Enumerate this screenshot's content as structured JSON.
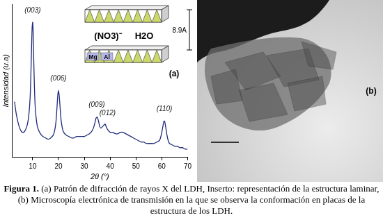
{
  "chart_data": {
    "type": "line",
    "x_label": "2θ (°)",
    "y_label": "Intensidad (u.a)",
    "panel_label": "(a)",
    "color": "#1f2a7a",
    "grid": false,
    "tick_labels": "x",
    "xlim": [
      2,
      70
    ],
    "xticks": [
      10,
      20,
      30,
      40,
      50,
      60,
      70
    ],
    "ylim": [
      0,
      110
    ],
    "x": [
      3,
      3.5,
      4,
      4.5,
      5,
      5.5,
      6,
      6.5,
      7,
      7.5,
      8,
      8.5,
      9,
      9.3,
      9.6,
      9.8,
      10,
      10.2,
      10.4,
      10.7,
      11,
      11.5,
      12,
      13,
      14,
      15,
      16,
      17,
      18,
      18.5,
      19,
      19.4,
      19.7,
      20,
      20.3,
      20.7,
      21,
      21.5,
      22,
      23,
      24,
      25,
      26,
      27,
      28,
      29,
      30,
      31,
      32,
      33,
      33.5,
      34,
      34.5,
      35,
      35.5,
      36,
      36.5,
      37,
      37.5,
      38,
      38.5,
      39,
      40,
      41,
      42,
      43,
      44,
      45,
      46,
      47,
      48,
      49,
      50,
      51,
      52,
      53,
      54,
      55,
      56,
      57,
      58,
      59,
      59.5,
      60,
      60.5,
      60.8,
      61.1,
      61.5,
      62,
      62.5,
      63,
      64,
      65,
      66,
      67,
      68,
      69,
      70
    ],
    "values": [
      40,
      33,
      28,
      24,
      21,
      19,
      18,
      18,
      19,
      21,
      24,
      30,
      42,
      58,
      80,
      93,
      97,
      90,
      72,
      50,
      36,
      26,
      21,
      17,
      15,
      14,
      13,
      14,
      16,
      19,
      25,
      35,
      44,
      48,
      44,
      34,
      27,
      21,
      18,
      16,
      15,
      14,
      14,
      15,
      15,
      15,
      15,
      16,
      17,
      19,
      21,
      24,
      28,
      29,
      26,
      22,
      21,
      22,
      23,
      24,
      22,
      20,
      18,
      18,
      17,
      17,
      18,
      18,
      17,
      16,
      15,
      14,
      13,
      12,
      11,
      11,
      10,
      10,
      10,
      10,
      11,
      12,
      14,
      18,
      23,
      26,
      26,
      22,
      16,
      12,
      10,
      9,
      8,
      8,
      7,
      7,
      6,
      6
    ],
    "annotations": [
      {
        "text": "(003)",
        "x": 10,
        "y": 103
      },
      {
        "text": "(006)",
        "x": 20,
        "y": 54
      },
      {
        "text": "(009)",
        "x": 34.8,
        "y": 35
      },
      {
        "text": "(012)",
        "x": 39,
        "y": 29
      },
      {
        "text": "(110)",
        "x": 61,
        "y": 32
      }
    ]
  },
  "inset": {
    "anion": "(NO3)⁻",
    "water": "H2O",
    "spacing": "8.9A",
    "cations": [
      "Mg",
      "Al"
    ]
  },
  "panel_b": {
    "label": "(b)"
  },
  "caption": {
    "label": "Figura 1.",
    "text": "(a) Patrón de difracción de rayos X del LDH, Inserto: representación de la estructura laminar, (b) Microscopía electrónica de transmisión en la que se observa la conformación en placas de la estructura de los LDH."
  }
}
